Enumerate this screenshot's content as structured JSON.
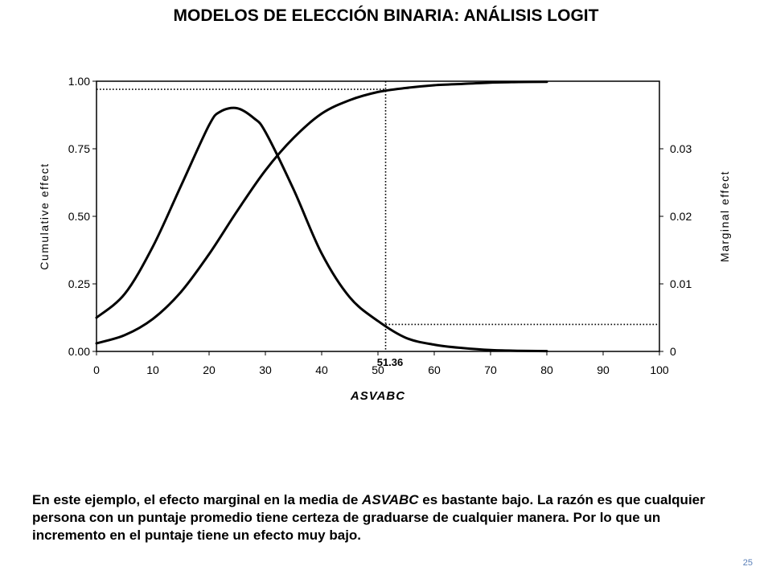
{
  "slide": {
    "title": "MODELOS DE ELECCIÓN BINARIA: ANÁLISIS LOGIT",
    "body_part1": "En este ejemplo, el efecto marginal en la media de ",
    "body_italic": "ASVABC",
    "body_part2": " es bastante bajo. La razón es que cualquier persona con un puntaje promedio tiene certeza de graduarse de cualquier manera.  Por lo que un incremento en el puntaje tiene un efecto muy bajo.",
    "page_number": "25"
  },
  "chart_data": {
    "type": "line",
    "xlabel": "ASVABC",
    "ylabel_left": "Cumulative effect",
    "ylabel_right": "Marginal effect",
    "xlim": [
      0,
      100
    ],
    "ylim_left": [
      0,
      1
    ],
    "ylim_right": [
      0,
      0.04
    ],
    "x_ticks": [
      "0",
      "10",
      "20",
      "30",
      "40",
      "50",
      "60",
      "70",
      "80",
      "90",
      "100"
    ],
    "y_ticks_left": [
      "0.00",
      "0.25",
      "0.50",
      "0.75",
      "1.00"
    ],
    "y_ticks_right": [
      "0",
      "0.01",
      "0.02",
      "0.03"
    ],
    "annotation": {
      "x": 51.36,
      "label": "51.36",
      "cumulative_at_mean": 0.97,
      "marginal_at_mean": 0.004
    },
    "grid": false,
    "series": [
      {
        "axis": "left",
        "color": "#000000",
        "x": [
          0,
          5,
          10,
          15,
          20,
          25,
          30,
          35,
          40,
          45,
          50,
          55,
          60,
          65,
          70,
          75,
          80
        ],
        "y": [
          0.03,
          0.06,
          0.12,
          0.22,
          0.36,
          0.52,
          0.67,
          0.79,
          0.88,
          0.93,
          0.96,
          0.975,
          0.985,
          0.99,
          0.995,
          0.997,
          0.998
        ]
      },
      {
        "axis": "right",
        "color": "#000000",
        "x": [
          0,
          5,
          10,
          15,
          20,
          22,
          25,
          28,
          30,
          35,
          40,
          45,
          50,
          55,
          60,
          65,
          70,
          75,
          80
        ],
        "y": [
          0.005,
          0.0085,
          0.0155,
          0.0245,
          0.0335,
          0.0355,
          0.036,
          0.0345,
          0.0325,
          0.024,
          0.0145,
          0.008,
          0.0045,
          0.002,
          0.001,
          0.0005,
          0.0002,
          0.0001,
          5e-05
        ]
      }
    ]
  }
}
